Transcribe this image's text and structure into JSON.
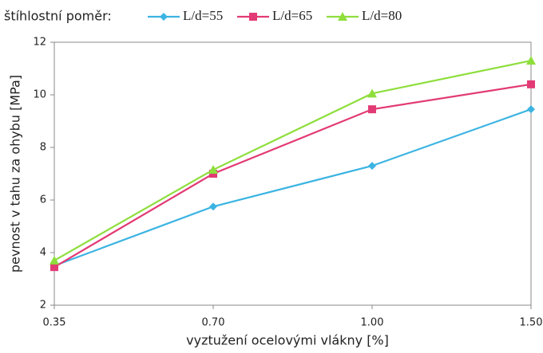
{
  "chart_data": {
    "type": "line",
    "legend_title": "štíhlostní poměr:",
    "x_label": "vyztužení ocelovými vlákny [%]",
    "y_label": "pevnost v tahu za ohybu [MPa]",
    "categories": [
      "0.35",
      "0.70",
      "1.00",
      "1.50"
    ],
    "series": [
      {
        "name": "L/d=55",
        "color": "#3cb4e2",
        "marker": "diamond",
        "values": [
          3.5,
          5.75,
          7.3,
          9.45
        ]
      },
      {
        "name": "L/d=65",
        "color": "#e23a74",
        "marker": "square",
        "values": [
          3.45,
          7.0,
          9.45,
          10.4
        ]
      },
      {
        "name": "L/d=80",
        "color": "#8ede3c",
        "marker": "triangle",
        "values": [
          3.7,
          7.15,
          10.05,
          11.3
        ]
      }
    ],
    "ylim": [
      2,
      12
    ],
    "yticks": [
      2,
      4,
      6,
      8,
      10,
      12
    ],
    "grid": false,
    "legend": "top"
  }
}
